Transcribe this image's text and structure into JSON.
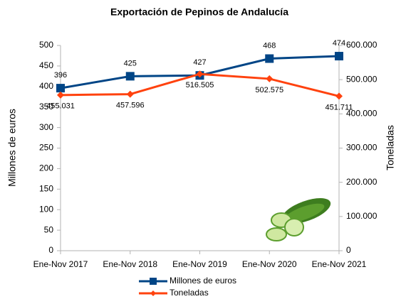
{
  "chart_data": {
    "type": "line",
    "title": "Exportación de Pepinos de Andalucía",
    "ylabel": "Millones de euros",
    "y2label": "Toneladas",
    "categories": [
      "Ene-Nov 2017",
      "Ene-Nov 2018",
      "Ene-Nov 2019",
      "Ene-Nov 2020",
      "Ene-Nov 2021"
    ],
    "series": [
      {
        "name": "Millones de euros",
        "color": "#004586",
        "marker": "square",
        "values": [
          396,
          425,
          427,
          468,
          474
        ]
      },
      {
        "name": "Toneladas",
        "color": "#ff420e",
        "marker": "diamond",
        "axis": "y2",
        "values": [
          455031,
          457596,
          516505,
          502575,
          451711
        ],
        "value_labels": [
          "455.031",
          "457.596",
          "516.505",
          "502.575",
          "451.711"
        ]
      }
    ],
    "ylim": [
      0,
      500
    ],
    "yticks": [
      0,
      50,
      100,
      150,
      200,
      250,
      300,
      350,
      400,
      450,
      500
    ],
    "y2lim": [
      0,
      600000
    ],
    "y2ticks": [
      {
        "value": 0,
        "label": "0"
      },
      {
        "value": 100000,
        "label": "100.000"
      },
      {
        "value": 200000,
        "label": "200.000"
      },
      {
        "value": 300000,
        "label": "300.000"
      },
      {
        "value": 400000,
        "label": "400.000"
      },
      {
        "value": 500000,
        "label": "500.000"
      },
      {
        "value": 600000,
        "label": "600.000"
      }
    ],
    "grid": false,
    "legend": "bottom"
  }
}
